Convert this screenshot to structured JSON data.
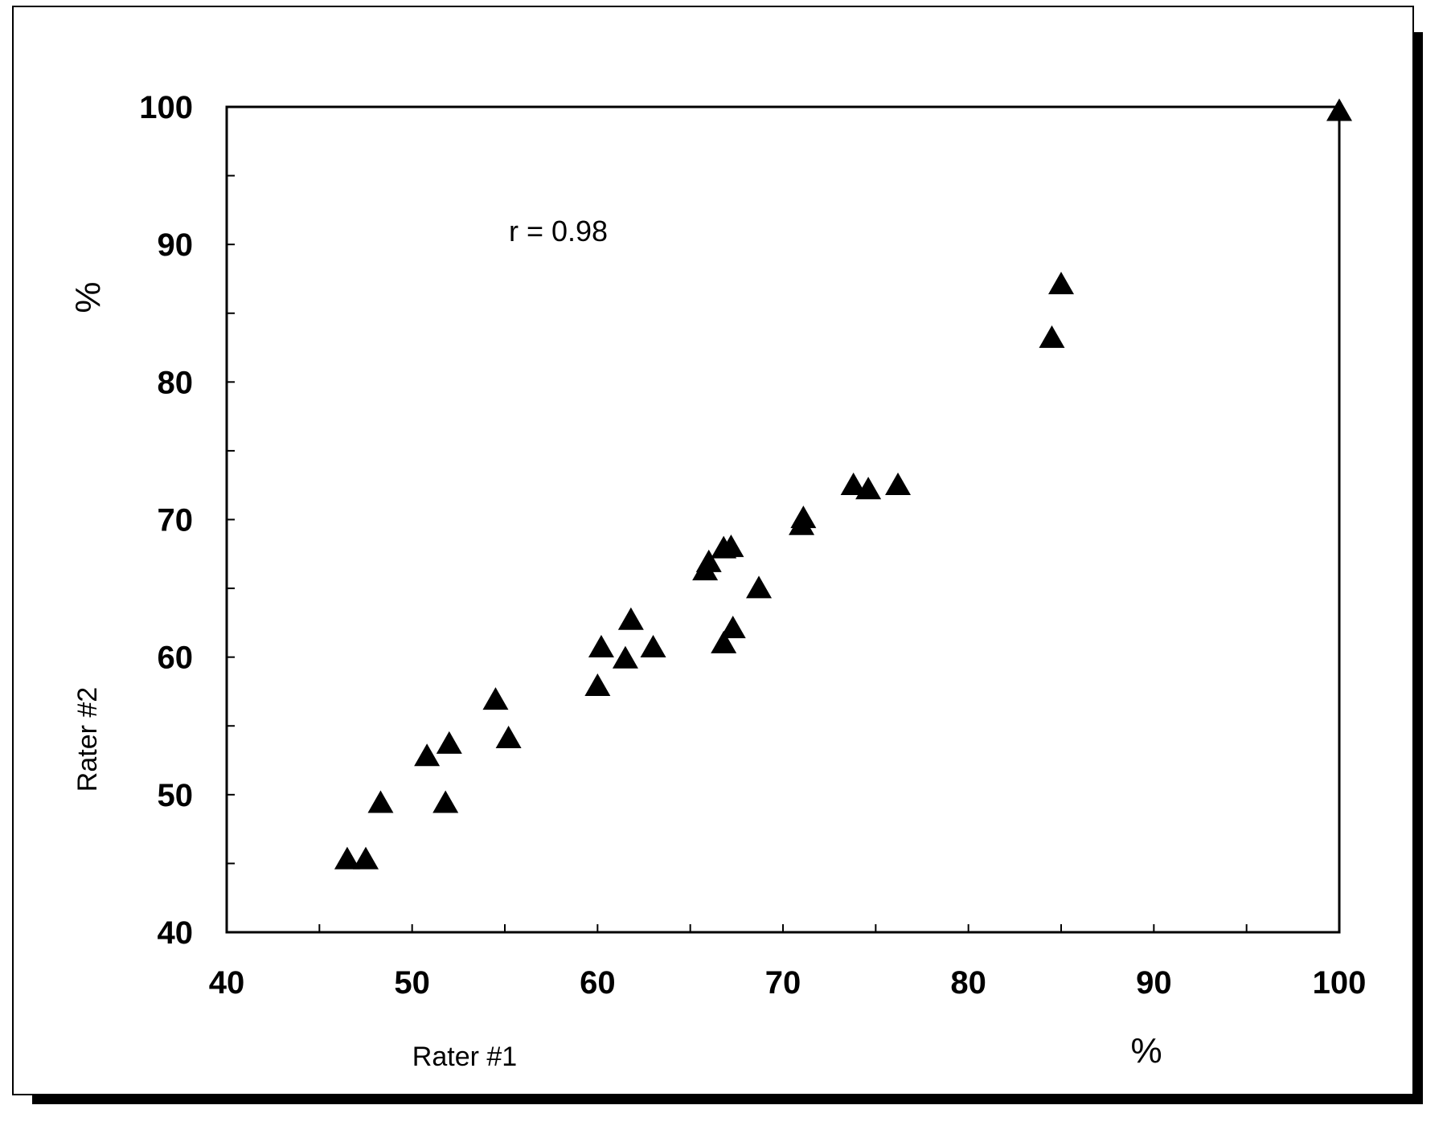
{
  "chart_data": {
    "type": "scatter",
    "title": "",
    "xlabel": "Rater #1",
    "xlabel_unit": "%",
    "ylabel": "Rater #2",
    "ylabel_unit": "%",
    "annotation": "r = 0.98",
    "xlim": [
      40,
      100
    ],
    "ylim": [
      40,
      100
    ],
    "x_ticks": [
      40,
      50,
      60,
      70,
      80,
      90,
      100
    ],
    "y_ticks": [
      40,
      50,
      60,
      70,
      80,
      90,
      100
    ],
    "grid": false,
    "marker": "filled-triangle",
    "marker_color": "#000000",
    "points": [
      {
        "x": 46.5,
        "y": 45.2
      },
      {
        "x": 47.5,
        "y": 45.2
      },
      {
        "x": 48.3,
        "y": 49.3
      },
      {
        "x": 50.8,
        "y": 52.7
      },
      {
        "x": 52.0,
        "y": 53.6
      },
      {
        "x": 51.8,
        "y": 49.3
      },
      {
        "x": 54.5,
        "y": 56.8
      },
      {
        "x": 55.2,
        "y": 54.0
      },
      {
        "x": 60.0,
        "y": 57.8
      },
      {
        "x": 60.2,
        "y": 60.6
      },
      {
        "x": 61.5,
        "y": 59.8
      },
      {
        "x": 61.8,
        "y": 62.6
      },
      {
        "x": 63.0,
        "y": 60.6
      },
      {
        "x": 65.8,
        "y": 66.2
      },
      {
        "x": 66.0,
        "y": 66.8
      },
      {
        "x": 66.8,
        "y": 67.8
      },
      {
        "x": 67.2,
        "y": 67.9
      },
      {
        "x": 66.8,
        "y": 60.9
      },
      {
        "x": 67.3,
        "y": 62.0
      },
      {
        "x": 68.7,
        "y": 64.9
      },
      {
        "x": 71.0,
        "y": 69.5
      },
      {
        "x": 71.1,
        "y": 70.0
      },
      {
        "x": 73.8,
        "y": 72.4
      },
      {
        "x": 74.6,
        "y": 72.1
      },
      {
        "x": 76.2,
        "y": 72.4
      },
      {
        "x": 84.5,
        "y": 83.1
      },
      {
        "x": 85.0,
        "y": 87.0
      },
      {
        "x": 100.0,
        "y": 99.6
      }
    ]
  }
}
